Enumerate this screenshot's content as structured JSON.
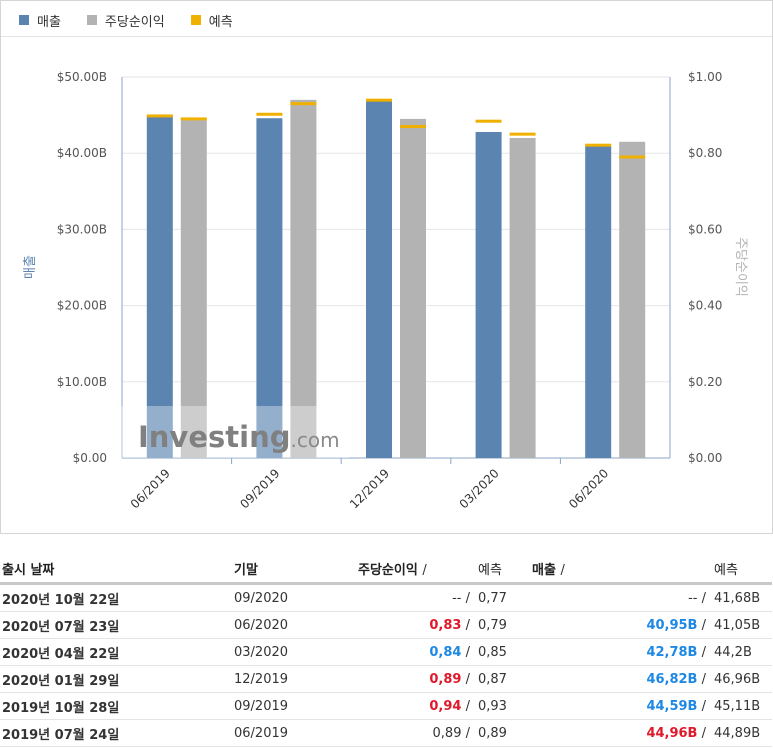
{
  "legend": {
    "revenue": "매출",
    "eps": "주당순이익",
    "forecast": "예측"
  },
  "colors": {
    "revenue": "#5b84b1",
    "eps": "#b3b3b3",
    "forecast": "#f0b000",
    "negative": "#e0192b",
    "positive": "#1e88e5"
  },
  "chart_data": {
    "type": "bar",
    "categories": [
      "06/2019",
      "09/2019",
      "12/2019",
      "03/2020",
      "06/2020"
    ],
    "y_left": {
      "label": "매출",
      "ticks": [
        "$0.00",
        "$10.00B",
        "$20.00B",
        "$30.00B",
        "$40.00B",
        "$50.00B"
      ],
      "range": [
        0,
        50
      ]
    },
    "y_right": {
      "label": "주당순이익",
      "ticks": [
        "$0.00",
        "$0.20",
        "$0.40",
        "$0.60",
        "$0.80",
        "$1.00"
      ],
      "range": [
        0,
        1
      ]
    },
    "series": [
      {
        "name": "매출",
        "axis": "left",
        "values": [
          44.96,
          44.59,
          46.82,
          42.78,
          40.95
        ],
        "forecast": [
          44.89,
          45.11,
          46.96,
          44.2,
          41.05
        ]
      },
      {
        "name": "주당순이익",
        "axis": "right",
        "values": [
          0.89,
          0.94,
          0.89,
          0.84,
          0.83
        ],
        "forecast": [
          0.89,
          0.93,
          0.87,
          0.85,
          0.79
        ]
      }
    ],
    "watermark": "Investing.com"
  },
  "table": {
    "headers": {
      "date": "출시 날짜",
      "period": "기말",
      "eps": "주당순이익",
      "eps_forecast": "예측",
      "revenue": "매출",
      "revenue_forecast": "예측",
      "slash": "/"
    },
    "rows": [
      {
        "date": "2020년 10월 22일",
        "period": "09/2020",
        "eps": "--",
        "eps_state": "neu",
        "eps_forecast": "0,77",
        "revenue": "--",
        "revenue_state": "neu",
        "revenue_forecast": "41,68B"
      },
      {
        "date": "2020년 07월 23일",
        "period": "06/2020",
        "eps": "0,83",
        "eps_state": "neg",
        "eps_forecast": "0,79",
        "revenue": "40,95B",
        "revenue_state": "pos",
        "revenue_forecast": "41,05B"
      },
      {
        "date": "2020년 04월 22일",
        "period": "03/2020",
        "eps": "0,84",
        "eps_state": "pos",
        "eps_forecast": "0,85",
        "revenue": "42,78B",
        "revenue_state": "pos",
        "revenue_forecast": "44,2B"
      },
      {
        "date": "2020년 01월 29일",
        "period": "12/2019",
        "eps": "0,89",
        "eps_state": "neg",
        "eps_forecast": "0,87",
        "revenue": "46,82B",
        "revenue_state": "pos",
        "revenue_forecast": "46,96B"
      },
      {
        "date": "2019년 10월 28일",
        "period": "09/2019",
        "eps": "0,94",
        "eps_state": "neg",
        "eps_forecast": "0,93",
        "revenue": "44,59B",
        "revenue_state": "pos",
        "revenue_forecast": "45,11B"
      },
      {
        "date": "2019년 07월 24일",
        "period": "06/2019",
        "eps": "0,89",
        "eps_state": "neu",
        "eps_forecast": "0,89",
        "revenue": "44,96B",
        "revenue_state": "neg",
        "revenue_forecast": "44,89B"
      }
    ]
  }
}
